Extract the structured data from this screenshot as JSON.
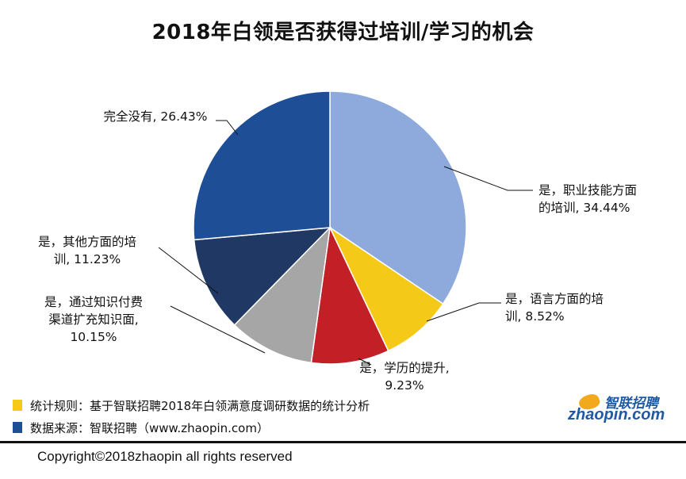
{
  "chart_data": {
    "type": "pie",
    "title": "2018年白领是否获得过培训/学习的机会",
    "slices": [
      {
        "label_lines": [
          "是，职业技能方面",
          "的培训, 34.44%"
        ],
        "category": "是，职业技能方面的培训",
        "value": 34.44,
        "color": "#8eaadc"
      },
      {
        "label_lines": [
          "是，语言方面的培",
          "训, 8.52%"
        ],
        "category": "是，语言方面的培训",
        "value": 8.52,
        "color": "#f5c917"
      },
      {
        "label_lines": [
          "是，学历的提升,",
          "9.23%"
        ],
        "category": "是，学历的提升",
        "value": 9.23,
        "color": "#c21f27"
      },
      {
        "label_lines": [
          "是，通过知识付费",
          "渠道扩充知识面,",
          "10.15%"
        ],
        "category": "是，通过知识付费渠道扩充知识面",
        "value": 10.15,
        "color": "#a6a6a6"
      },
      {
        "label_lines": [
          "是，其他方面的培",
          "训, 11.23%"
        ],
        "category": "是，其他方面的培训",
        "value": 11.23,
        "color": "#203864"
      },
      {
        "label_lines": [
          "完全没有, 26.43%"
        ],
        "category": "完全没有",
        "value": 26.43,
        "color": "#1e4e96"
      }
    ],
    "legend": "none"
  },
  "notes": [
    {
      "text": "统计规则：基于智联招聘2018年白领满意度调研数据的统计分析",
      "color": "#f5c917"
    },
    {
      "text": "数据来源：智联招聘（www.zhaopin.com）",
      "color": "#1e4e96"
    }
  ],
  "logo": {
    "cn": "智联招聘",
    "en": "zhaopin.com"
  },
  "copyright": "Copyright©2018zhaopin all rights reserved"
}
